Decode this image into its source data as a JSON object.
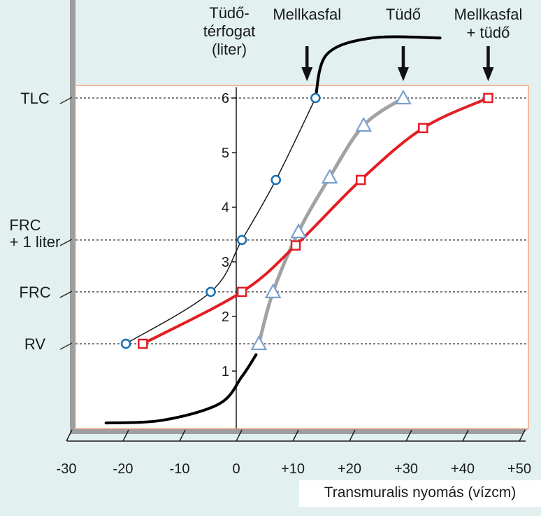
{
  "chart_data": {
    "type": "line",
    "ylabel": "Tüdő-\ntérfogat\n(liter)",
    "xlabel": "Transmuralis nyomás (vízcm)",
    "xlim": [
      -30,
      52
    ],
    "ylim": [
      0,
      6.2
    ],
    "x_ticks": [
      -30,
      -20,
      -10,
      0,
      10,
      20,
      30,
      40,
      50
    ],
    "x_tick_labels": [
      "-30",
      "-20",
      "-10",
      "0",
      "+10",
      "+20",
      "+30",
      "+40",
      "+50"
    ],
    "y_ticks": [
      1,
      2,
      3,
      4,
      5,
      6
    ],
    "y_tick_labels": [
      "1",
      "2",
      "3",
      "4",
      "5",
      "6"
    ],
    "reference_lines": [
      {
        "label": "TLC",
        "y": 6.0
      },
      {
        "label": "FRC\n+ 1 liter",
        "y": 3.4
      },
      {
        "label": "FRC",
        "y": 2.45
      },
      {
        "label": "RV",
        "y": 1.5
      }
    ],
    "arrows": [
      {
        "label": "Mellkasfal",
        "x": 12.5
      },
      {
        "label": "Tüdő",
        "x": 29.5
      },
      {
        "label": "Mellkasfal\n+ tüdő",
        "x": 44.5
      }
    ],
    "series": [
      {
        "name": "Mellkasfal",
        "marker": "circle",
        "color": "#1a6fb0",
        "line_color": "#1a1a1a",
        "points": [
          [
            -19.5,
            1.5
          ],
          [
            -4.5,
            2.45
          ],
          [
            1,
            3.4
          ],
          [
            7,
            4.5
          ],
          [
            14,
            6.0
          ]
        ],
        "extension_low": [
          [
            -23,
            0.05
          ],
          [
            -13,
            0.1
          ],
          [
            -3,
            0.4
          ],
          [
            1,
            0.9
          ],
          [
            3.5,
            1.3
          ]
        ],
        "extension_high": [
          [
            14,
            6.0
          ],
          [
            16,
            6.8
          ],
          [
            24,
            7.1
          ],
          [
            36,
            7.1
          ]
        ]
      },
      {
        "name": "Tüdő",
        "marker": "triangle",
        "color": "#7aa0d0",
        "line_color": "#a2a2a2",
        "points": [
          [
            4,
            1.5
          ],
          [
            6.5,
            2.45
          ],
          [
            11,
            3.55
          ],
          [
            16.5,
            4.55
          ],
          [
            22.5,
            5.5
          ],
          [
            29.5,
            6.0
          ]
        ]
      },
      {
        "name": "Mellkasfal + tüdő",
        "marker": "square",
        "color": "#e31e24",
        "line_color": "#e31e24",
        "points": [
          [
            -16.5,
            1.5
          ],
          [
            1,
            2.45
          ],
          [
            10.5,
            3.3
          ],
          [
            22,
            4.5
          ],
          [
            33,
            5.45
          ],
          [
            44.5,
            6.0
          ]
        ]
      }
    ]
  }
}
